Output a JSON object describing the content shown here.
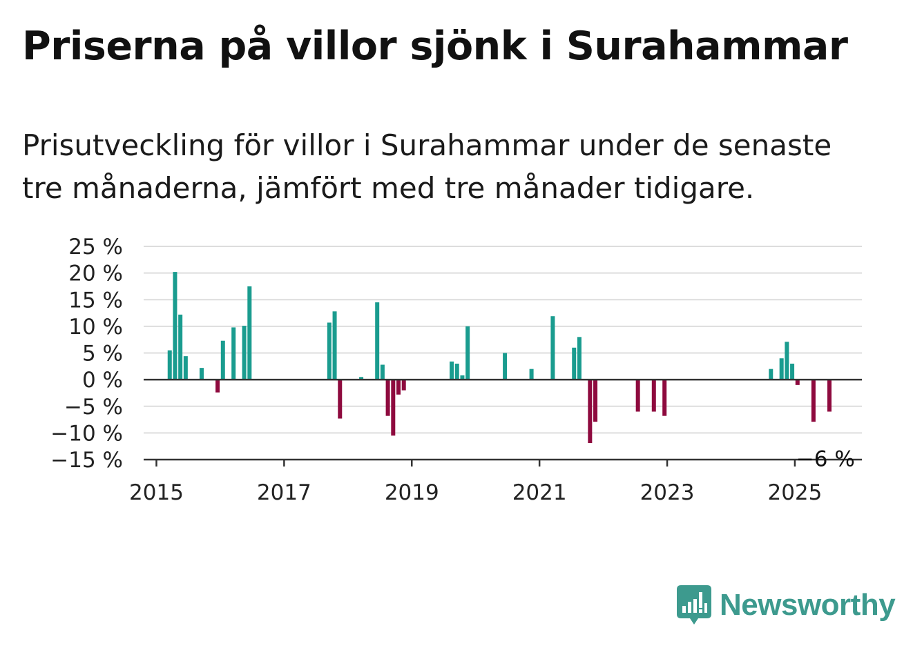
{
  "header": {
    "title": "Priserna på villor sjönk i Surahammar",
    "subtitle": "Prisutveckling för villor i Surahammar under de senaste tre månaderna, jämfört med tre månader tidigare."
  },
  "brand": {
    "name": "Newsworthy",
    "icon": "newsworthy-logo-icon"
  },
  "colors": {
    "positive": "#1a9c8f",
    "negative": "#8e0a3e",
    "grid": "#dddddd",
    "axis": "#333333",
    "brand": "#3d9a8e"
  },
  "chart_data": {
    "type": "bar",
    "ylim": [
      -15,
      25
    ],
    "xlim": [
      2014.8,
      2026.05
    ],
    "y_ticks": [
      {
        "value": 25,
        "label": "25 %"
      },
      {
        "value": 20,
        "label": "20 %"
      },
      {
        "value": 15,
        "label": "15 %"
      },
      {
        "value": 10,
        "label": "10 %"
      },
      {
        "value": 5,
        "label": "5 %"
      },
      {
        "value": 0,
        "label": "0 %"
      },
      {
        "value": -5,
        "label": "−5 %"
      },
      {
        "value": -10,
        "label": "−10 %"
      },
      {
        "value": -15,
        "label": "−15 %"
      }
    ],
    "x_ticks": [
      {
        "value": 2015,
        "label": "2015"
      },
      {
        "value": 2017,
        "label": "2017"
      },
      {
        "value": 2019,
        "label": "2019"
      },
      {
        "value": 2021,
        "label": "2021"
      },
      {
        "value": 2023,
        "label": "2023"
      },
      {
        "value": 2025,
        "label": "2025"
      }
    ],
    "grid": true,
    "annotation": {
      "label": "−6 %",
      "x": 2025.48,
      "y": -6
    },
    "x": [
      "2015-03",
      "2015-04",
      "2015-05",
      "2015-06",
      "2015-09",
      "2015-12",
      "2016-01",
      "2016-03",
      "2016-05",
      "2016-06",
      "2017-09",
      "2017-10",
      "2017-11",
      "2018-03",
      "2018-06",
      "2018-07",
      "2018-08",
      "2018-09",
      "2018-10",
      "2018-11",
      "2019-08",
      "2019-09",
      "2019-10",
      "2019-11",
      "2020-06",
      "2020-11",
      "2021-03",
      "2021-07",
      "2021-08",
      "2021-10",
      "2021-11",
      "2022-07",
      "2022-10",
      "2022-12",
      "2024-08",
      "2024-10",
      "2024-11",
      "2024-12",
      "2025-01",
      "2025-04",
      "2025-07"
    ],
    "values": [
      5.5,
      20.2,
      12.2,
      4.4,
      2.2,
      -2.4,
      7.3,
      9.8,
      10.1,
      17.5,
      10.7,
      12.8,
      -7.3,
      0.5,
      14.5,
      2.8,
      -6.8,
      -10.5,
      -2.8,
      -2,
      3.4,
      3,
      0.8,
      10,
      5,
      2,
      11.9,
      6,
      8,
      -11.9,
      -7.9,
      -6,
      -6,
      -6.8,
      2,
      4,
      7.1,
      3,
      -1,
      -7.9,
      -6
    ]
  }
}
